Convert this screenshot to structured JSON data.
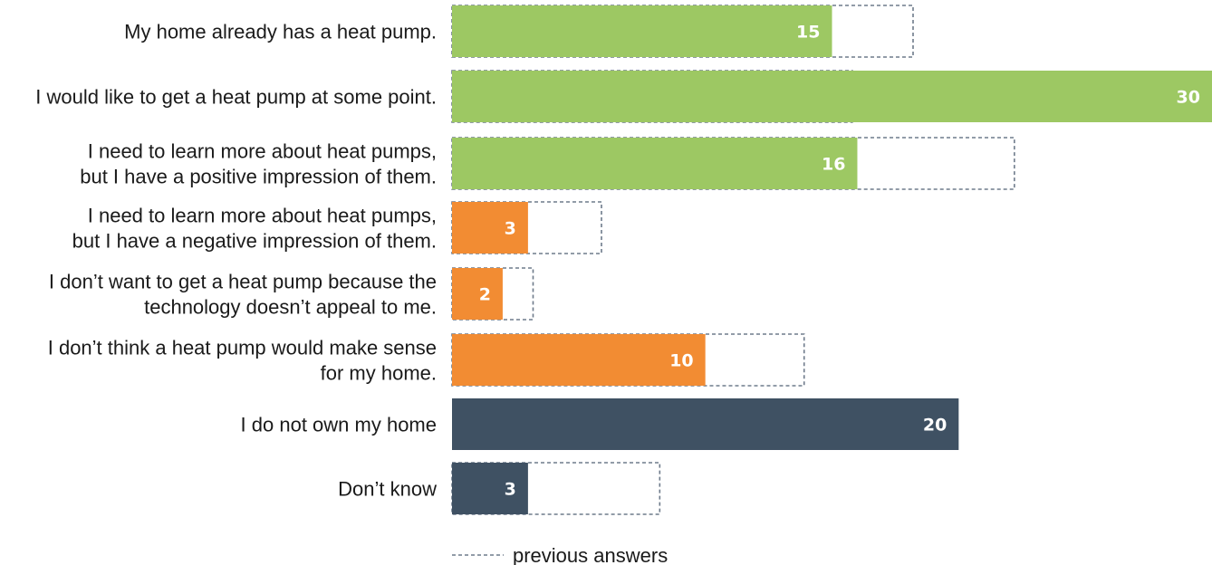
{
  "chart_data": {
    "type": "bar",
    "orientation": "horizontal",
    "categories": [
      [
        "My home already has a heat pump."
      ],
      [
        "I would like to get a heat pump at some point."
      ],
      [
        "I need to learn more about heat pumps,",
        "but I have a positive impression of them."
      ],
      [
        "I need to learn more about heat pumps,",
        "but I have a negative impression of them."
      ],
      [
        "I don’t want to get a heat pump because the",
        "technology doesn’t appeal to me."
      ],
      [
        "I don’t think a heat pump would make sense",
        "for my home."
      ],
      [
        "I do not own my home"
      ],
      [
        "Don’t know"
      ]
    ],
    "series": [
      {
        "values": [
          15,
          30,
          16,
          3,
          2,
          10,
          20,
          3
        ]
      },
      {
        "name": "previous answers",
        "values": [
          18.2,
          15.8,
          22.2,
          5.9,
          3.2,
          13.9,
          null,
          8.2
        ]
      }
    ],
    "bar_colors": [
      "#9dc863",
      "#9dc863",
      "#9dc863",
      "#f28c33",
      "#f28c33",
      "#f28c33",
      "#3f5163",
      "#3f5163"
    ],
    "previous_style": "dashed outline",
    "legend": {
      "label": "previous answers",
      "placement": "bottom"
    },
    "xlim": [
      0,
      30
    ],
    "grid": false
  }
}
